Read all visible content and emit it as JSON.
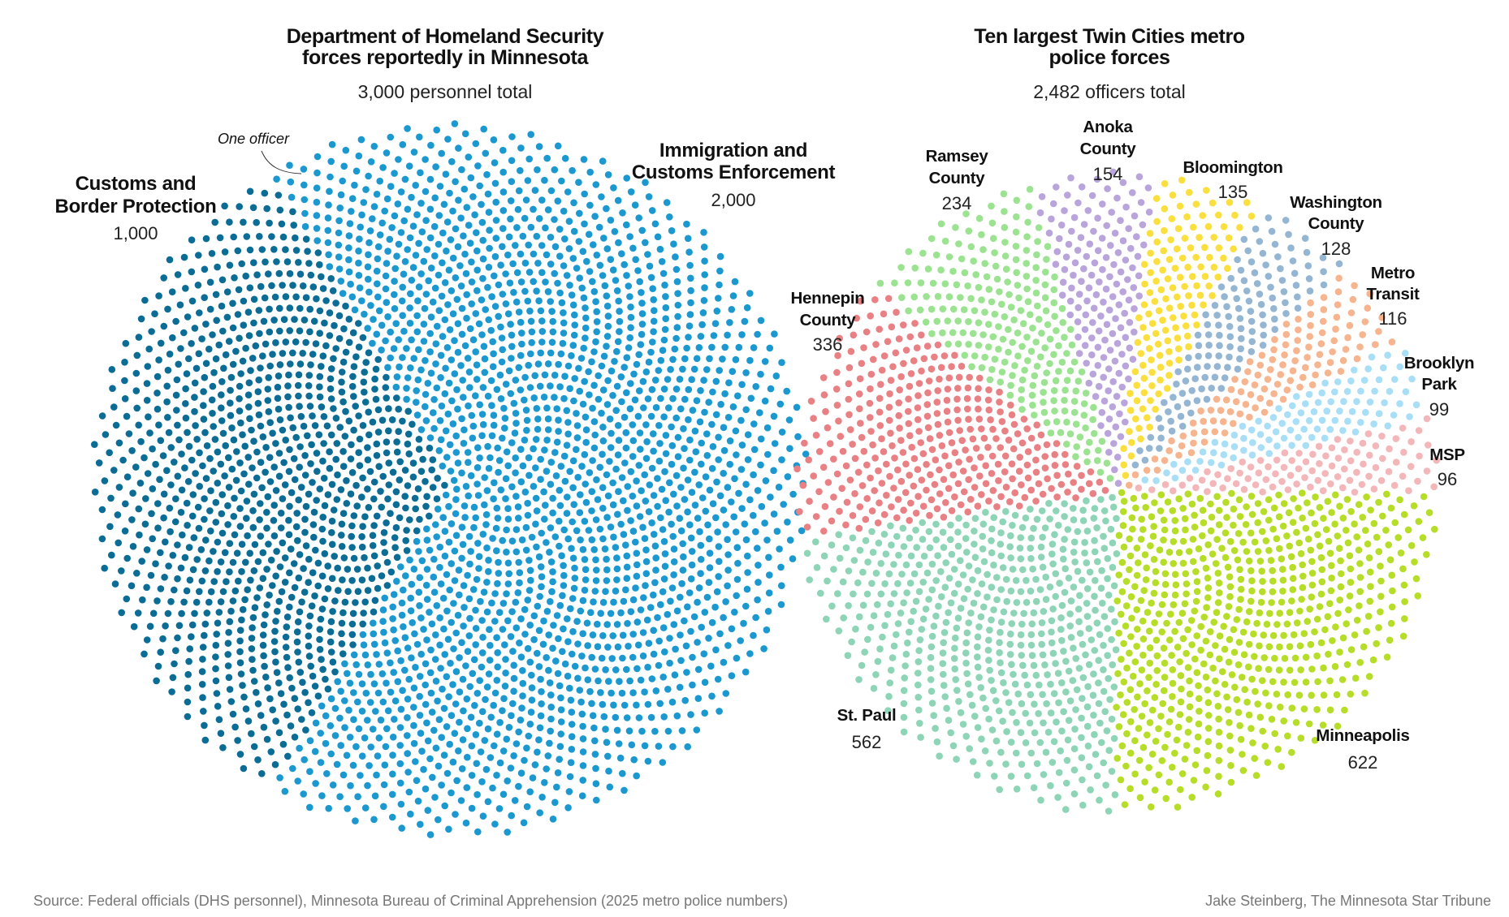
{
  "chart_data": [
    {
      "type": "dot-pie",
      "title": [
        "Department of Homeland Security",
        "forces reportedly in Minnesota"
      ],
      "subtitle": "3,000 personnel total",
      "annotation": "One officer",
      "unit": "one dot = one officer",
      "series": [
        {
          "name": [
            "Customs and",
            "Border Protection"
          ],
          "value": 1000,
          "value_label": "1,000",
          "color": "#0b6c96"
        },
        {
          "name": [
            "Immigration and",
            "Customs Enforcement"
          ],
          "value": 2000,
          "value_label": "2,000",
          "color": "#1b98d0"
        }
      ]
    },
    {
      "type": "dot-pie",
      "title": [
        "Ten largest Twin Cities metro",
        "police forces"
      ],
      "subtitle": "2,482 officers total",
      "series": [
        {
          "name": [
            "Minneapolis"
          ],
          "value": 622,
          "value_label": "622",
          "color": "#b6dd27"
        },
        {
          "name": [
            "St. Paul"
          ],
          "value": 562,
          "value_label": "562",
          "color": "#8dd5b6"
        },
        {
          "name": [
            "Hennepin",
            "County"
          ],
          "value": 336,
          "value_label": "336",
          "color": "#e98084"
        },
        {
          "name": [
            "Ramsey",
            "County"
          ],
          "value": 234,
          "value_label": "234",
          "color": "#9be391"
        },
        {
          "name": [
            "Anoka",
            "County"
          ],
          "value": 154,
          "value_label": "154",
          "color": "#b9a5dc"
        },
        {
          "name": [
            "Bloomington"
          ],
          "value": 135,
          "value_label": "135",
          "color": "#fadf3e"
        },
        {
          "name": [
            "Washington",
            "County"
          ],
          "value": 128,
          "value_label": "128",
          "color": "#95b6d3"
        },
        {
          "name": [
            "Metro",
            "Transit"
          ],
          "value": 116,
          "value_label": "116",
          "color": "#f6b48f"
        },
        {
          "name": [
            "Brooklyn",
            "Park"
          ],
          "value": 99,
          "value_label": "99",
          "color": "#a9def7"
        },
        {
          "name": [
            "MSP"
          ],
          "value": 96,
          "value_label": "96",
          "color": "#f3b7ba"
        }
      ]
    }
  ],
  "footer": {
    "source": "Source: Federal officials (DHS personnel), Minnesota Bureau of Criminal Apprehension (2025 metro police numbers)",
    "credit": "Jake Steinberg, The Minnesota Star Tribune"
  }
}
